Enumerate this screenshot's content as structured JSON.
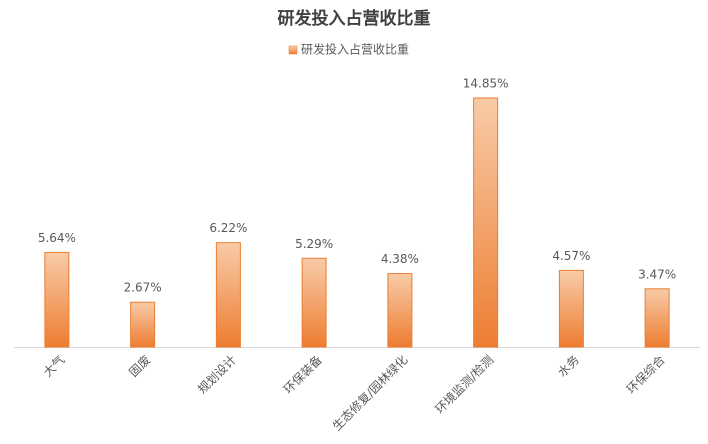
{
  "chart_data": {
    "type": "bar",
    "title": "研发投入占营收比重",
    "categories": [
      "大气",
      "固废",
      "规划设计",
      "环保装备",
      "生态修复/园林绿化",
      "环境监测/检测",
      "水务",
      "环保综合"
    ],
    "series": [
      {
        "name": "研发投入占营收比重",
        "color": "#ed7d31",
        "values": [
          5.64,
          2.67,
          6.22,
          5.29,
          4.38,
          14.85,
          4.57,
          3.47
        ],
        "value_labels": [
          "5.64%",
          "2.67%",
          "6.22%",
          "5.29%",
          "4.38%",
          "14.85%",
          "4.57%",
          "3.47%"
        ]
      }
    ],
    "legend": "top"
  }
}
